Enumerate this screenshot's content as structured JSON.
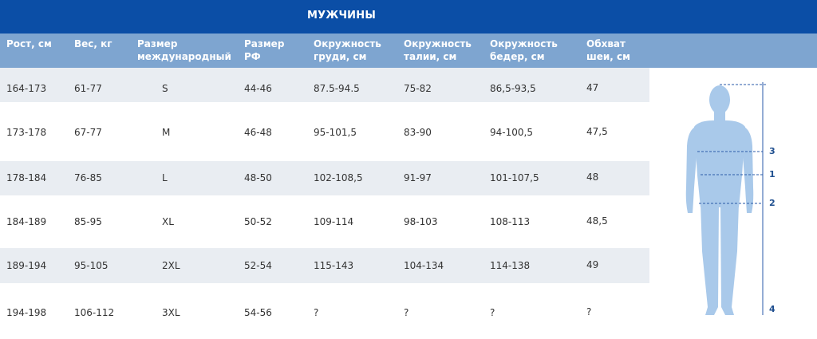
{
  "title": "МУЖЧИНЫ",
  "headers": [
    "Рост, см",
    "Вес, кг",
    "Размер\nмеждународный",
    "Размер\nРФ",
    "Окружность\nгруди, см",
    "Окружность\nталии, см",
    "Окружность\nбедер, см",
    "Обхват\nшеи, см"
  ],
  "rows": [
    [
      "164-173",
      "61-77",
      "S",
      "44-46",
      "87.5-94.5",
      "75-82",
      "86,5-93,5",
      "47"
    ],
    [
      "173-178",
      "67-77",
      "M",
      "46-48",
      "95-101,5",
      "83-90",
      "94-100,5",
      "47,5"
    ],
    [
      "178-184",
      "76-85",
      "L",
      "48-50",
      "102-108,5",
      "91-97",
      "101-107,5",
      "48"
    ],
    [
      "184-189",
      "85-95",
      "XL",
      "50-52",
      "109-114",
      "98-103",
      "108-113",
      "48,5"
    ],
    [
      "189-194",
      "95-105",
      "2XL",
      "52-54",
      "115-143",
      "104-134",
      "114-138",
      "49"
    ],
    [
      "194-198",
      "106-112",
      "3XL",
      "54-56",
      "?",
      "?",
      "?",
      "?"
    ]
  ],
  "figure_marks": [
    "3",
    "1",
    "2",
    "4"
  ],
  "colors": {
    "title_bar": "#0b4ea6",
    "header_row": "#7ea5d0",
    "row_shade": "#e9edf2",
    "body_fill": "#a9c9ea",
    "measure_line": "#2a5aa8"
  }
}
